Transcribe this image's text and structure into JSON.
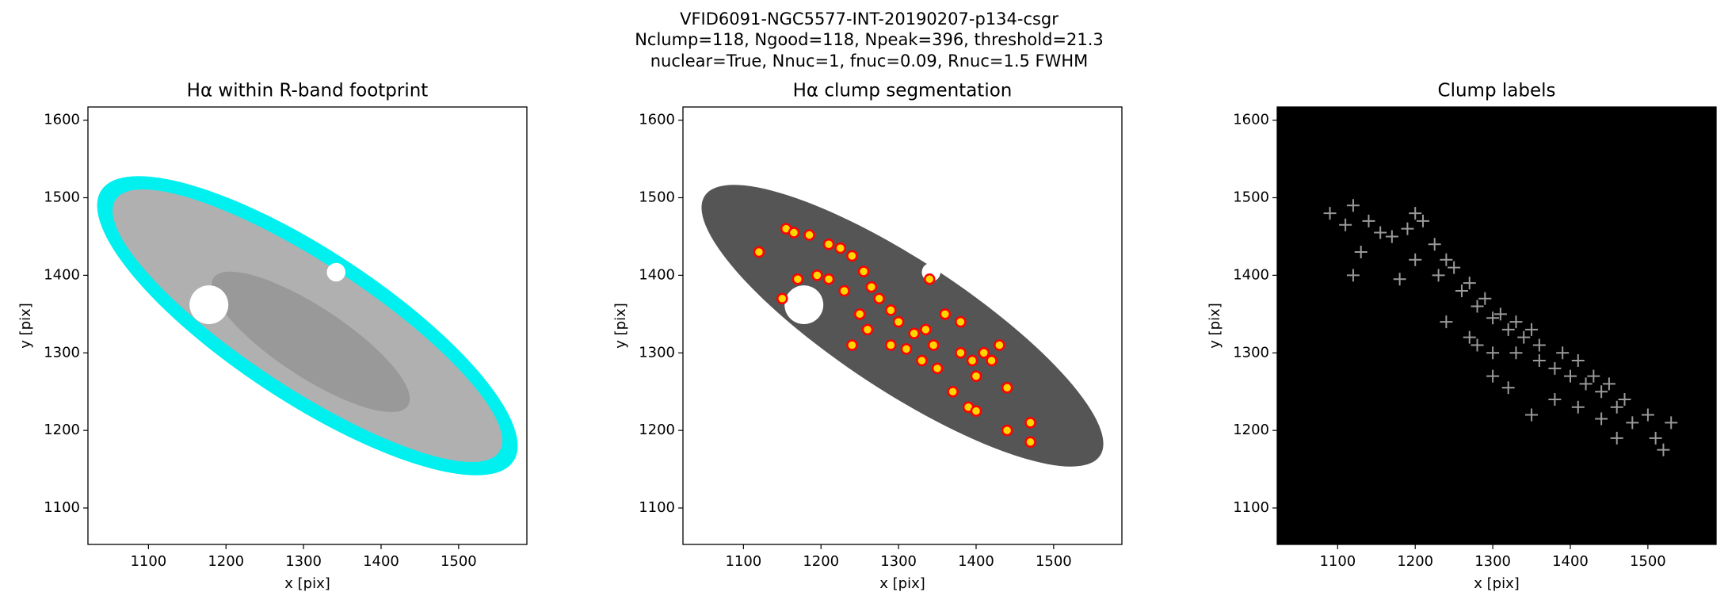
{
  "figure_title": [
    "VFID6091-NGC5577-INT-20190207-p134-csgr",
    "Nclump=118, Ngood=118, Npeak=396, threshold=21.3",
    "nuclear=True, Nnuc=1, fnuc=0.09, Rnuc=1.5 FWHM"
  ],
  "chart_data": [
    {
      "type": "image",
      "title": "Hα within R-band footprint",
      "xlabel": "x [pix]",
      "ylabel": "y [pix]",
      "xlim": [
        1022,
        1588
      ],
      "ylim": [
        1053,
        1617
      ],
      "xticks": [
        1100,
        1200,
        1300,
        1400,
        1500
      ],
      "yticks": [
        1100,
        1200,
        1300,
        1400,
        1500,
        1600
      ],
      "background": "#ffffff",
      "footprint_color": "#00f0f0",
      "image_color": "#b0b0b0"
    },
    {
      "type": "scatter",
      "title": "Hα clump segmentation",
      "xlabel": "x [pix]",
      "ylabel": "y [pix]",
      "xlim": [
        1022,
        1588
      ],
      "ylim": [
        1053,
        1617
      ],
      "xticks": [
        1100,
        1200,
        1300,
        1400,
        1500
      ],
      "yticks": [
        1100,
        1200,
        1300,
        1400,
        1500,
        1600
      ],
      "background": "#ffffff",
      "image_color": "#555555",
      "marker": "circle",
      "color": "#ff0000",
      "x": [
        1120,
        1155,
        1165,
        1185,
        1170,
        1210,
        1225,
        1240,
        1195,
        1210,
        1230,
        1255,
        1265,
        1275,
        1250,
        1290,
        1300,
        1320,
        1335,
        1345,
        1310,
        1290,
        1260,
        1240,
        1330,
        1350,
        1380,
        1395,
        1400,
        1410,
        1420,
        1430,
        1440,
        1370,
        1390,
        1400,
        1440,
        1470,
        1470,
        1360,
        1380,
        1150,
        1340
      ],
      "y": [
        1430,
        1460,
        1455,
        1452,
        1395,
        1440,
        1435,
        1425,
        1400,
        1395,
        1380,
        1405,
        1385,
        1370,
        1350,
        1355,
        1340,
        1325,
        1330,
        1310,
        1305,
        1310,
        1330,
        1310,
        1290,
        1280,
        1300,
        1290,
        1270,
        1300,
        1290,
        1310,
        1255,
        1250,
        1230,
        1225,
        1200,
        1210,
        1185,
        1350,
        1340,
        1370,
        1395
      ]
    },
    {
      "type": "scatter",
      "title": "Clump labels",
      "xlabel": "x [pix]",
      "ylabel": "y [pix]",
      "xlim": [
        1022,
        1588
      ],
      "ylim": [
        1053,
        1617
      ],
      "xticks": [
        1100,
        1200,
        1300,
        1400,
        1500
      ],
      "yticks": [
        1100,
        1200,
        1300,
        1400,
        1500,
        1600
      ],
      "background": "#000000",
      "marker": "plus",
      "color": "#9a9a9a",
      "x": [
        1090,
        1120,
        1110,
        1140,
        1155,
        1170,
        1130,
        1190,
        1200,
        1210,
        1225,
        1240,
        1120,
        1180,
        1200,
        1230,
        1250,
        1260,
        1270,
        1280,
        1290,
        1300,
        1310,
        1320,
        1330,
        1340,
        1350,
        1360,
        1240,
        1270,
        1300,
        1330,
        1360,
        1380,
        1390,
        1400,
        1410,
        1420,
        1430,
        1440,
        1450,
        1460,
        1470,
        1480,
        1500,
        1510,
        1530,
        1520,
        1350,
        1380,
        1410,
        1300,
        1320,
        1280,
        1440,
        1460
      ],
      "y": [
        1480,
        1490,
        1465,
        1470,
        1455,
        1450,
        1430,
        1460,
        1480,
        1470,
        1440,
        1420,
        1400,
        1395,
        1420,
        1400,
        1410,
        1380,
        1390,
        1360,
        1370,
        1345,
        1350,
        1330,
        1340,
        1320,
        1330,
        1310,
        1340,
        1320,
        1300,
        1300,
        1290,
        1280,
        1300,
        1270,
        1290,
        1260,
        1270,
        1250,
        1260,
        1230,
        1240,
        1210,
        1220,
        1190,
        1210,
        1175,
        1220,
        1240,
        1230,
        1270,
        1255,
        1310,
        1215,
        1190
      ]
    }
  ]
}
